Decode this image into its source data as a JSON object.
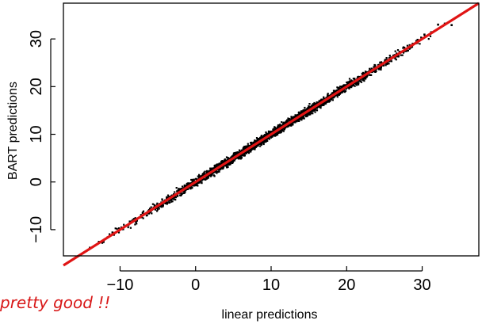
{
  "chart_data": {
    "type": "scatter",
    "title": "",
    "xlabel": "linear predictions",
    "ylabel": "BART predictions",
    "xlim": [
      -17.5,
      37.5
    ],
    "ylim": [
      -15.5,
      37.5
    ],
    "x_ticks": [
      -10,
      0,
      10,
      20,
      30
    ],
    "y_ticks": [
      -10,
      0,
      10,
      20,
      30
    ],
    "x_tick_labels": [
      "−10",
      "0",
      "10",
      "20",
      "30"
    ],
    "y_tick_labels": [
      "−10",
      "0",
      "10",
      "20",
      "30"
    ],
    "grid": false,
    "legend": "none",
    "annotation": "pretty good !!",
    "colors": {
      "points": "#000000",
      "fit_line": "#e01414",
      "annotation": "#d81818"
    },
    "fit_line": {
      "intercept": 0,
      "slope": 1,
      "x": [
        -17.5,
        37.5
      ]
    },
    "point_cloud": {
      "description_of_shape": "dense band along the identity line",
      "x_range": [
        -14,
        34
      ],
      "spread": 0.8
    },
    "points": [
      {
        "x": -14.0,
        "y": -13.8
      },
      {
        "x": -12.2,
        "y": -12.6
      },
      {
        "x": -11.0,
        "y": -10.6
      },
      {
        "x": -9.6,
        "y": -9.9
      },
      {
        "x": -8.7,
        "y": -8.3
      },
      {
        "x": -7.9,
        "y": -8.4
      },
      {
        "x": -7.0,
        "y": -6.5
      },
      {
        "x": -6.2,
        "y": -6.6
      },
      {
        "x": -5.4,
        "y": -5.0
      },
      {
        "x": -4.6,
        "y": -5.1
      },
      {
        "x": -3.8,
        "y": -3.4
      },
      {
        "x": -3.0,
        "y": -3.5
      },
      {
        "x": -2.3,
        "y": -1.9
      },
      {
        "x": -1.5,
        "y": -1.8
      },
      {
        "x": -0.8,
        "y": -0.4
      },
      {
        "x": 0.0,
        "y": -0.3
      },
      {
        "x": 0.8,
        "y": 1.2
      },
      {
        "x": 1.5,
        "y": 1.1
      },
      {
        "x": 2.3,
        "y": 2.7
      },
      {
        "x": 3.0,
        "y": 2.6
      },
      {
        "x": 3.8,
        "y": 4.2
      },
      {
        "x": 4.6,
        "y": 4.1
      },
      {
        "x": 5.4,
        "y": 5.8
      },
      {
        "x": 6.2,
        "y": 5.6
      },
      {
        "x": 7.0,
        "y": 7.4
      },
      {
        "x": 7.8,
        "y": 7.2
      },
      {
        "x": 8.6,
        "y": 9.0
      },
      {
        "x": 9.4,
        "y": 8.9
      },
      {
        "x": 10.2,
        "y": 10.5
      },
      {
        "x": 11.0,
        "y": 10.4
      },
      {
        "x": 11.8,
        "y": 12.1
      },
      {
        "x": 12.6,
        "y": 12.0
      },
      {
        "x": 13.4,
        "y": 13.7
      },
      {
        "x": 14.2,
        "y": 13.6
      },
      {
        "x": 15.0,
        "y": 15.3
      },
      {
        "x": 15.8,
        "y": 15.1
      },
      {
        "x": 16.6,
        "y": 16.9
      },
      {
        "x": 17.4,
        "y": 16.8
      },
      {
        "x": 18.2,
        "y": 18.4
      },
      {
        "x": 19.0,
        "y": 18.3
      },
      {
        "x": 19.8,
        "y": 20.0
      },
      {
        "x": 20.6,
        "y": 19.9
      },
      {
        "x": 21.4,
        "y": 21.6
      },
      {
        "x": 22.2,
        "y": 21.4
      },
      {
        "x": 23.0,
        "y": 23.2
      },
      {
        "x": 23.8,
        "y": 23.1
      },
      {
        "x": 24.6,
        "y": 24.7
      },
      {
        "x": 25.4,
        "y": 25.0
      },
      {
        "x": 26.2,
        "y": 26.5
      },
      {
        "x": 27.0,
        "y": 27.3
      },
      {
        "x": 27.8,
        "y": 27.9
      },
      {
        "x": 28.6,
        "y": 28.3
      },
      {
        "x": 29.4,
        "y": 29.8
      },
      {
        "x": 30.3,
        "y": 30.9
      },
      {
        "x": 31.2,
        "y": 31.4
      },
      {
        "x": 32.1,
        "y": 33.0
      },
      {
        "x": 33.0,
        "y": 33.2
      },
      {
        "x": 33.9,
        "y": 32.9
      }
    ]
  }
}
